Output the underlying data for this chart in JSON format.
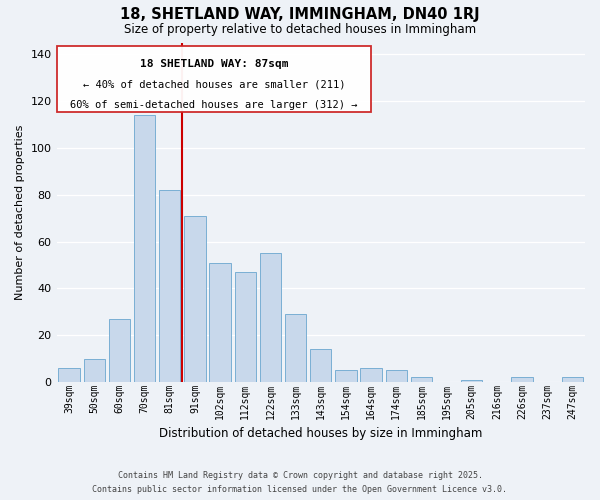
{
  "title": "18, SHETLAND WAY, IMMINGHAM, DN40 1RJ",
  "subtitle": "Size of property relative to detached houses in Immingham",
  "xlabel": "Distribution of detached houses by size in Immingham",
  "ylabel": "Number of detached properties",
  "bar_color": "#c8d8eb",
  "bar_edge_color": "#7aafd4",
  "categories": [
    "39sqm",
    "50sqm",
    "60sqm",
    "70sqm",
    "81sqm",
    "91sqm",
    "102sqm",
    "112sqm",
    "122sqm",
    "133sqm",
    "143sqm",
    "154sqm",
    "164sqm",
    "174sqm",
    "185sqm",
    "195sqm",
    "205sqm",
    "216sqm",
    "226sqm",
    "237sqm",
    "247sqm"
  ],
  "values": [
    6,
    10,
    27,
    114,
    82,
    71,
    51,
    47,
    55,
    29,
    14,
    5,
    6,
    5,
    2,
    0,
    1,
    0,
    2,
    0,
    2
  ],
  "ylim": [
    0,
    145
  ],
  "yticks": [
    0,
    20,
    40,
    60,
    80,
    100,
    120,
    140
  ],
  "property_line_x": 4.5,
  "annotation_title": "18 SHETLAND WAY: 87sqm",
  "annotation_line1": "← 40% of detached houses are smaller (211)",
  "annotation_line2": "60% of semi-detached houses are larger (312) →",
  "footer_line1": "Contains HM Land Registry data © Crown copyright and database right 2025.",
  "footer_line2": "Contains public sector information licensed under the Open Government Licence v3.0.",
  "background_color": "#eef2f7",
  "grid_color": "#ffffff",
  "line_color": "#cc0000",
  "ann_box_facecolor": "#ffffff",
  "ann_box_edgecolor": "#cc2222"
}
